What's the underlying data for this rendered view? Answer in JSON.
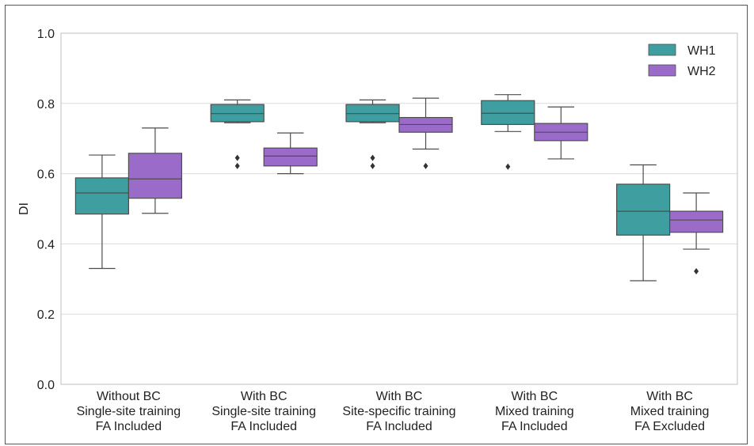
{
  "chart_data": {
    "type": "box",
    "ylabel": "DI",
    "ylim": [
      0.0,
      1.0
    ],
    "yticks": [
      "0.0",
      "0.2",
      "0.4",
      "0.6",
      "0.8",
      "1.0"
    ],
    "grid": "horizontal",
    "legend_position": "top-right",
    "categories": [
      [
        "Without BC",
        "Single-site training",
        "FA Included"
      ],
      [
        "With BC",
        "Single-site training",
        "FA Included"
      ],
      [
        "With BC",
        "Site-specific training",
        "FA Included"
      ],
      [
        "With BC",
        "Mixed training",
        "FA Included"
      ],
      [
        "With BC",
        "Mixed training",
        "FA Excluded"
      ]
    ],
    "series": [
      {
        "name": "WH1",
        "color": "#3f9ea0",
        "boxes": [
          {
            "whisker_low": 0.33,
            "q1": 0.485,
            "median": 0.545,
            "q3": 0.588,
            "whisker_high": 0.653,
            "outliers": []
          },
          {
            "whisker_low": 0.745,
            "q1": 0.748,
            "median": 0.771,
            "q3": 0.797,
            "whisker_high": 0.81,
            "outliers": [
              0.622,
              0.645
            ]
          },
          {
            "whisker_low": 0.745,
            "q1": 0.748,
            "median": 0.771,
            "q3": 0.797,
            "whisker_high": 0.81,
            "outliers": [
              0.622,
              0.645
            ]
          },
          {
            "whisker_low": 0.72,
            "q1": 0.74,
            "median": 0.772,
            "q3": 0.808,
            "whisker_high": 0.825,
            "outliers": [
              0.62
            ]
          },
          {
            "whisker_low": 0.295,
            "q1": 0.425,
            "median": 0.493,
            "q3": 0.57,
            "whisker_high": 0.625,
            "outliers": []
          }
        ]
      },
      {
        "name": "WH2",
        "color": "#9a6bc9",
        "boxes": [
          {
            "whisker_low": 0.487,
            "q1": 0.53,
            "median": 0.585,
            "q3": 0.658,
            "whisker_high": 0.73,
            "outliers": []
          },
          {
            "whisker_low": 0.6,
            "q1": 0.622,
            "median": 0.65,
            "q3": 0.673,
            "whisker_high": 0.716,
            "outliers": []
          },
          {
            "whisker_low": 0.67,
            "q1": 0.718,
            "median": 0.74,
            "q3": 0.76,
            "whisker_high": 0.815,
            "outliers": [
              0.622
            ]
          },
          {
            "whisker_low": 0.642,
            "q1": 0.694,
            "median": 0.718,
            "q3": 0.743,
            "whisker_high": 0.79,
            "outliers": []
          },
          {
            "whisker_low": 0.385,
            "q1": 0.433,
            "median": 0.468,
            "q3": 0.493,
            "whisker_high": 0.545,
            "outliers": [
              0.322
            ]
          }
        ]
      }
    ]
  }
}
